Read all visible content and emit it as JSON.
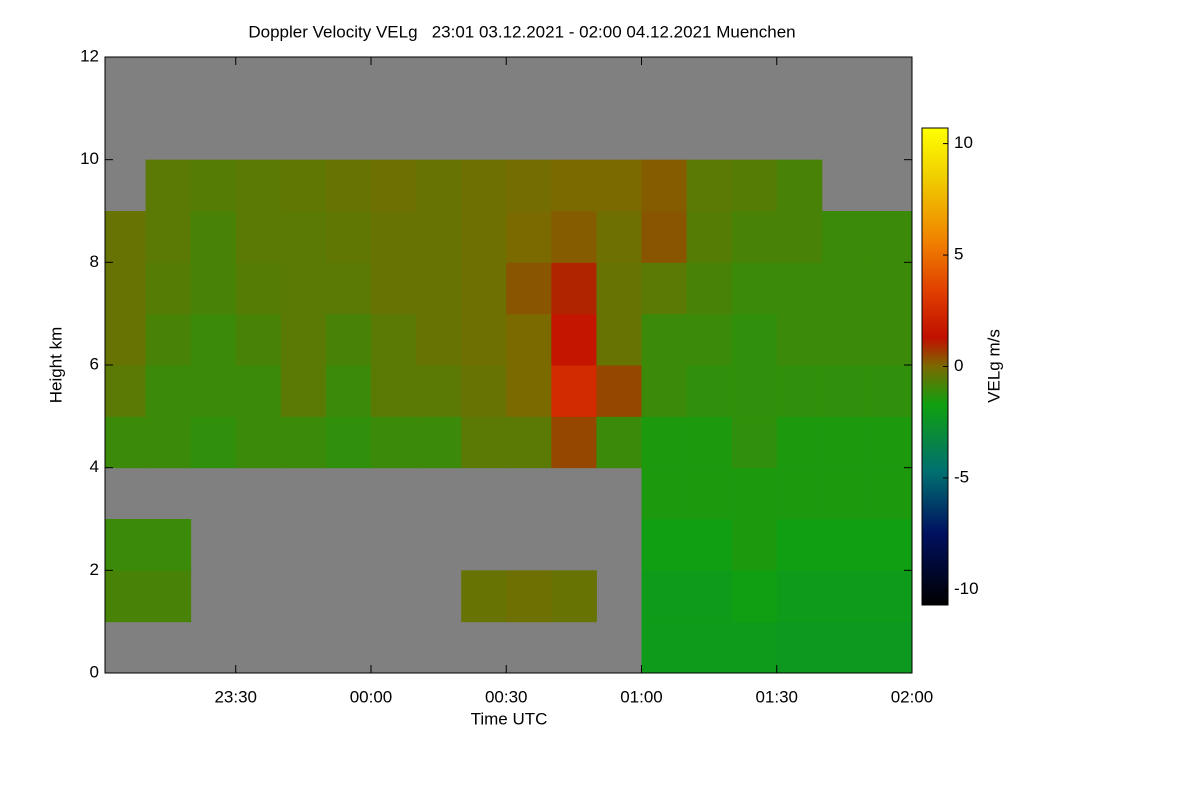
{
  "chart_data": {
    "type": "heatmap",
    "title": "Doppler Velocity VELg   23:01 03.12.2021 - 02:00 04.12.2021 Muenchen",
    "x_label": "Time UTC",
    "y_label": "Height km",
    "colorbar_label": "VELg m/s",
    "xlim": [
      1,
      180
    ],
    "xticks": [
      {
        "value": 30,
        "label": "23:30"
      },
      {
        "value": 60,
        "label": "00:00"
      },
      {
        "value": 90,
        "label": "00:30"
      },
      {
        "value": 120,
        "label": "01:00"
      },
      {
        "value": 150,
        "label": "01:30"
      },
      {
        "value": 180,
        "label": "02:00"
      }
    ],
    "ylim": [
      0,
      12
    ],
    "yticks": [
      0,
      2,
      4,
      6,
      8,
      10,
      12
    ],
    "clim": [
      -10.7,
      10.7
    ],
    "cticks": [
      10,
      5,
      0,
      -5,
      -10
    ],
    "no_data_color": "#808080",
    "x_bins": [
      1,
      10,
      20,
      30,
      40,
      50,
      60,
      70,
      80,
      90,
      100,
      110,
      120,
      130,
      140,
      150,
      160,
      170,
      180
    ],
    "y_bins": [
      0,
      1,
      2,
      3,
      4,
      5,
      6,
      7,
      8,
      9,
      10,
      11,
      12
    ],
    "values": [
      [
        null,
        null,
        null,
        null,
        null,
        null,
        null,
        null,
        null,
        null,
        null,
        null,
        -2,
        -2,
        -2,
        -2.2,
        -2.2,
        -2.2
      ],
      [
        -0.8,
        -0.8,
        null,
        null,
        null,
        null,
        null,
        null,
        -0.3,
        -0.2,
        -0.3,
        null,
        -2,
        -2,
        -1.8,
        -2,
        -2,
        -2
      ],
      [
        -1,
        -1,
        null,
        null,
        null,
        null,
        null,
        null,
        null,
        null,
        null,
        null,
        -1.8,
        -1.8,
        -1.5,
        -1.8,
        -1.8,
        -1.8
      ],
      [
        null,
        null,
        null,
        null,
        null,
        null,
        null,
        null,
        null,
        null,
        null,
        null,
        -1.5,
        -1.5,
        -1.5,
        -1.5,
        -1.5,
        -1.5
      ],
      [
        -1,
        -1,
        -1.2,
        -1,
        -1,
        -1.2,
        -1,
        -1,
        -0.5,
        -0.5,
        0.5,
        -1,
        -1.5,
        -1.5,
        -1.2,
        -1.5,
        -1.5,
        -1.5
      ],
      [
        -0.5,
        -1,
        -1,
        -1,
        -0.5,
        -1,
        -0.5,
        -0.5,
        -0.3,
        0,
        2.5,
        0.5,
        -1,
        -1.2,
        -1.2,
        -1.2,
        -1.2,
        -1.2
      ],
      [
        -0.3,
        -0.8,
        -1,
        -0.8,
        -0.5,
        -0.8,
        -0.5,
        -0.3,
        -0.2,
        0,
        1.5,
        -0.3,
        -1,
        -1,
        -1.2,
        -1,
        -1,
        -1
      ],
      [
        -0.3,
        -0.6,
        -0.8,
        -0.6,
        -0.5,
        -0.5,
        -0.3,
        -0.3,
        -0.2,
        0.3,
        1,
        -0.3,
        -0.5,
        -0.8,
        -1,
        -1,
        -1,
        -1
      ],
      [
        -0.3,
        -0.5,
        -0.8,
        -0.5,
        -0.5,
        -0.4,
        -0.3,
        -0.3,
        -0.2,
        0,
        0.2,
        -0.2,
        0.3,
        -0.6,
        -0.8,
        -0.8,
        -1,
        -1
      ],
      [
        null,
        -0.5,
        -0.6,
        -0.5,
        -0.4,
        -0.3,
        -0.2,
        -0.3,
        -0.2,
        -0.1,
        0,
        0,
        0.2,
        -0.5,
        -0.6,
        -0.8,
        null,
        null
      ],
      [
        null,
        null,
        null,
        null,
        null,
        null,
        null,
        null,
        null,
        null,
        null,
        null,
        null,
        null,
        null,
        null,
        null,
        null
      ],
      [
        null,
        null,
        null,
        null,
        null,
        null,
        null,
        null,
        null,
        null,
        null,
        null,
        null,
        null,
        null,
        null,
        null,
        null
      ]
    ]
  }
}
